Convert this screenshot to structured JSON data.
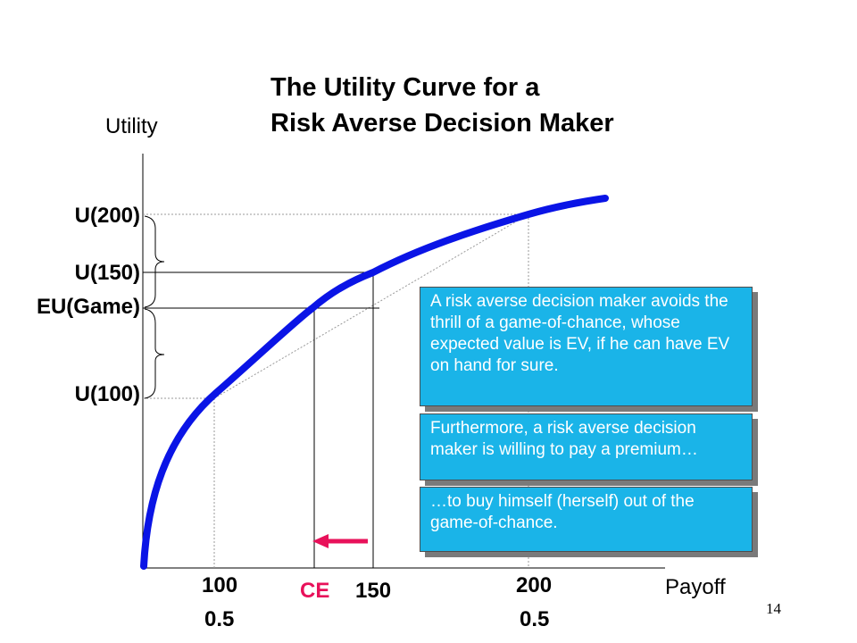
{
  "title": {
    "line1": "The Utility Curve for a",
    "line2": "Risk Averse Decision Maker"
  },
  "axes": {
    "y_label": "Utility",
    "x_label": "Payoff"
  },
  "y_markers": {
    "u200": "U(200)",
    "u150": "U(150)",
    "eu_game": "EU(Game)",
    "u100": "U(100)"
  },
  "x_markers": {
    "x100": "100",
    "p100": "0.5",
    "ce": "CE",
    "x150": "150",
    "x200": "200",
    "p200": "0.5"
  },
  "callouts": [
    "A risk averse decision maker avoids the thrill of a game-of-chance, whose expected value is EV, if he can have EV on hand for sure.",
    "Furthermore, a risk averse decision maker is willing to pay a premium…",
    "…to buy himself (herself) out of the game-of-chance."
  ],
  "page_number": "14",
  "colors": {
    "curve": "#0a14e6",
    "ce_arrow": "#e8115a",
    "callout_fill": "#1ab4e8"
  }
}
